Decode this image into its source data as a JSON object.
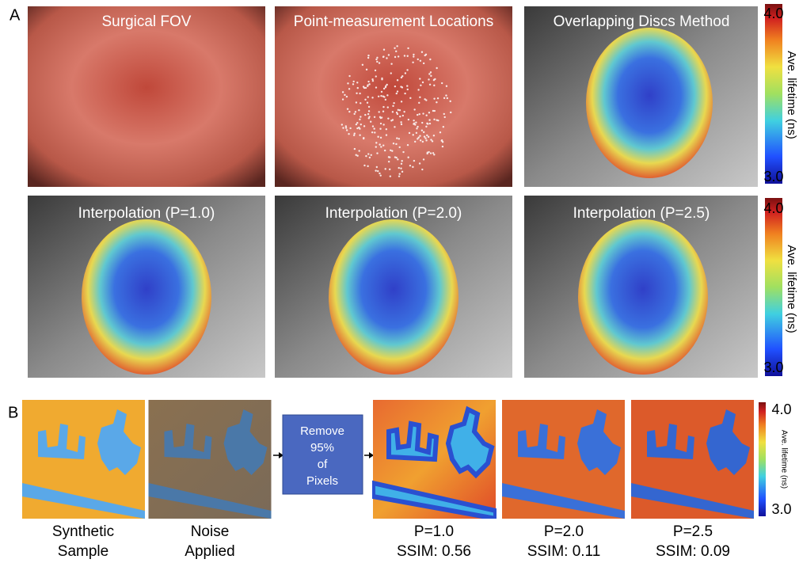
{
  "panel_a": {
    "label": "A",
    "row1_titles": [
      "Surgical FOV",
      "Point-measurement Locations",
      "Overlapping Discs Method"
    ],
    "row2_titles": [
      "Interpolation (P=1.0)",
      "Interpolation (P=2.0)",
      "Interpolation (P=2.5)"
    ],
    "colorbars": [
      {
        "max": "4.0",
        "min": "3.0",
        "title": "Ave. lifetime (ns)"
      },
      {
        "max": "4.0",
        "min": "3.0",
        "title": "Ave. lifetime (ns)"
      }
    ]
  },
  "panel_b": {
    "label": "B",
    "inputs": [
      [
        "Synthetic",
        "Sample"
      ],
      [
        "Noise",
        "Applied"
      ]
    ],
    "process": [
      "Remove",
      "95%",
      "of",
      "Pixels"
    ],
    "results": [
      [
        "P=1.0",
        "SSIM: 0.56"
      ],
      [
        "P=2.0",
        "SSIM: 0.11"
      ],
      [
        "P=2.5",
        "SSIM: 0.09"
      ]
    ],
    "colorbar": {
      "max": "4.0",
      "min": "3.0",
      "title": "Ave. lifetime (ns)"
    }
  }
}
